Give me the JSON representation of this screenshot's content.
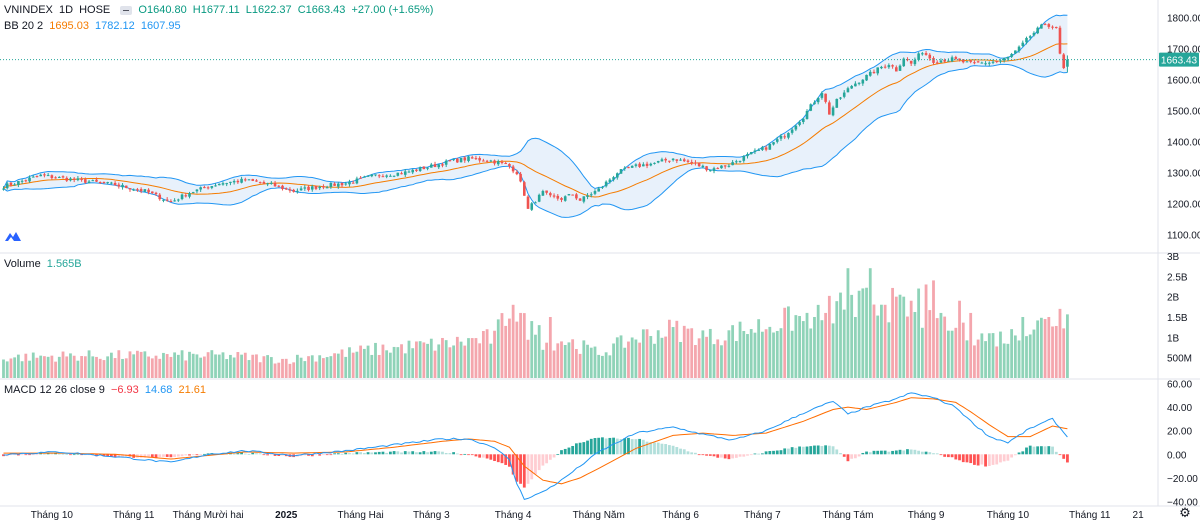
{
  "main_legend": {
    "symbol": "VNINDEX",
    "interval": "1D",
    "exchange": "HOSE",
    "open": "O1640.80",
    "high": "H1677.11",
    "low": "L1622.37",
    "close": "C1663.43",
    "change": "+27.00 (+1.65%)"
  },
  "bb_legend": {
    "name": "BB 20 2",
    "basis": "1695.03",
    "upper": "1782.12",
    "lower": "1607.95"
  },
  "volume_legend": {
    "name": "Volume",
    "value": "1.565B"
  },
  "macd_legend": {
    "name": "MACD 12 26 close 9",
    "hist": "−6.93",
    "macd": "14.68",
    "signal": "21.61"
  },
  "price_tag": "1663.43",
  "colors": {
    "up": "#26a69a",
    "down": "#ef5350",
    "bb_band": "#2196f3",
    "bb_basis": "#f57c00",
    "bb_fill": "#e8f1fb",
    "macd": "#2196f3",
    "signal": "#ff6d00"
  },
  "icons": {
    "logo": "tradingview-logo-icon",
    "settings": "gear-icon",
    "hide": "minus-icon"
  },
  "chart_data": [
    {
      "type": "candlestick",
      "title": "VNINDEX 1D HOSE",
      "ylim": [
        1050,
        1830
      ],
      "y_ticks": [
        "1800.00",
        "1700.00",
        "1600.00",
        "1500.00",
        "1400.00",
        "1300.00",
        "1200.00",
        "1100.00"
      ],
      "x_ticks": [
        "Tháng 10",
        "Tháng 11",
        "Tháng Mười hai",
        "2025",
        "Tháng Hai",
        "Tháng 3",
        "Tháng 4",
        "Tháng Năm",
        "Tháng 6",
        "Tháng 7",
        "Tháng Tám",
        "Tháng 9",
        "Tháng 10",
        "Tháng 11",
        "21"
      ],
      "x_tick_index": [
        13,
        35,
        55,
        76,
        96,
        115,
        137,
        160,
        182,
        204,
        227,
        248,
        270,
        292,
        305
      ],
      "last": {
        "open": 1640.8,
        "high": 1677.11,
        "low": 1622.37,
        "close": 1663.43
      },
      "close_anchors": [
        [
          0,
          1255
        ],
        [
          10,
          1290
        ],
        [
          20,
          1275
        ],
        [
          30,
          1260
        ],
        [
          38,
          1240
        ],
        [
          45,
          1205
        ],
        [
          50,
          1235
        ],
        [
          58,
          1265
        ],
        [
          65,
          1275
        ],
        [
          72,
          1260
        ],
        [
          78,
          1240
        ],
        [
          85,
          1255
        ],
        [
          92,
          1265
        ],
        [
          100,
          1290
        ],
        [
          108,
          1300
        ],
        [
          115,
          1320
        ],
        [
          120,
          1335
        ],
        [
          125,
          1345
        ],
        [
          130,
          1340
        ],
        [
          134,
          1330
        ],
        [
          136,
          1320
        ],
        [
          138,
          1300
        ],
        [
          140,
          1230
        ],
        [
          141,
          1180
        ],
        [
          143,
          1210
        ],
        [
          145,
          1235
        ],
        [
          147,
          1220
        ],
        [
          150,
          1215
        ],
        [
          153,
          1230
        ],
        [
          155,
          1210
        ],
        [
          157,
          1225
        ],
        [
          160,
          1245
        ],
        [
          165,
          1300
        ],
        [
          170,
          1320
        ],
        [
          175,
          1330
        ],
        [
          180,
          1345
        ],
        [
          185,
          1330
        ],
        [
          190,
          1310
        ],
        [
          195,
          1325
        ],
        [
          200,
          1355
        ],
        [
          205,
          1380
        ],
        [
          210,
          1420
        ],
        [
          215,
          1480
        ],
        [
          218,
          1530
        ],
        [
          220,
          1560
        ],
        [
          222,
          1490
        ],
        [
          224,
          1530
        ],
        [
          228,
          1580
        ],
        [
          232,
          1610
        ],
        [
          236,
          1640
        ],
        [
          238,
          1650
        ],
        [
          240,
          1630
        ],
        [
          242,
          1670
        ],
        [
          244,
          1650
        ],
        [
          247,
          1690
        ],
        [
          250,
          1660
        ],
        [
          255,
          1665
        ],
        [
          260,
          1650
        ],
        [
          265,
          1655
        ],
        [
          268,
          1660
        ],
        [
          270,
          1670
        ],
        [
          273,
          1700
        ],
        [
          276,
          1740
        ],
        [
          278,
          1760
        ],
        [
          280,
          1780
        ],
        [
          282,
          1770
        ],
        [
          283,
          1760
        ],
        [
          284,
          1680
        ],
        [
          285,
          1636.43
        ],
        [
          286,
          1663.43
        ]
      ],
      "series": [
        {
          "name": "BB 20 2 basis"
        },
        {
          "name": "BB 20 2 upper"
        },
        {
          "name": "BB 20 2 lower"
        }
      ]
    },
    {
      "type": "bar",
      "title": "Volume",
      "ylim": [
        0,
        3000000000
      ],
      "y_ticks": [
        "3B",
        "2.5B",
        "2B",
        "1.5B",
        "1B",
        "500M"
      ],
      "last_value": 1565000000,
      "volume_anchors": [
        [
          0,
          0.5
        ],
        [
          20,
          0.55
        ],
        [
          60,
          0.55
        ],
        [
          76,
          0.45
        ],
        [
          100,
          0.7
        ],
        [
          120,
          0.85
        ],
        [
          132,
          1.0
        ],
        [
          136,
          1.7
        ],
        [
          139,
          1.4
        ],
        [
          145,
          0.9
        ],
        [
          152,
          0.9
        ],
        [
          160,
          0.6
        ],
        [
          170,
          1.0
        ],
        [
          180,
          1.2
        ],
        [
          190,
          1.0
        ],
        [
          200,
          1.2
        ],
        [
          210,
          1.4
        ],
        [
          220,
          1.6
        ],
        [
          228,
          1.8
        ],
        [
          235,
          1.9
        ],
        [
          242,
          1.7
        ],
        [
          250,
          1.3
        ],
        [
          262,
          1.0
        ],
        [
          270,
          1.0
        ],
        [
          278,
          1.3
        ],
        [
          286,
          1.565
        ]
      ],
      "volume_spikes": [
        [
          137,
          1.8
        ],
        [
          139,
          1.6
        ],
        [
          142,
          1.4
        ],
        [
          144,
          1.3
        ],
        [
          147,
          1.5
        ],
        [
          150,
          0.9
        ],
        [
          215,
          1.4
        ],
        [
          218,
          1.5
        ],
        [
          221,
          1.6
        ],
        [
          225,
          2.1
        ],
        [
          227,
          2.7
        ],
        [
          229,
          1.5
        ],
        [
          233,
          2.7
        ],
        [
          237,
          1.8
        ],
        [
          240,
          2.0
        ],
        [
          242,
          2.0
        ],
        [
          244,
          1.9
        ],
        [
          246,
          2.2
        ],
        [
          248,
          2.3
        ],
        [
          250,
          2.4
        ],
        [
          252,
          1.6
        ],
        [
          257,
          1.9
        ],
        [
          260,
          1.6
        ],
        [
          274,
          1.5
        ],
        [
          281,
          1.5
        ],
        [
          284,
          1.7
        ]
      ]
    },
    {
      "type": "line",
      "title": "MACD 12 26 close 9",
      "ylim": [
        -43,
        63
      ],
      "y_ticks": [
        "60.00",
        "40.00",
        "20.00",
        "0.00",
        "−20.00",
        "−40.00"
      ],
      "series": [
        {
          "name": "MACD",
          "anchors": [
            [
              0,
              0
            ],
            [
              15,
              2
            ],
            [
              30,
              -2
            ],
            [
              45,
              -7
            ],
            [
              55,
              0
            ],
            [
              65,
              3
            ],
            [
              78,
              -1
            ],
            [
              92,
              3
            ],
            [
              105,
              8
            ],
            [
              118,
              13
            ],
            [
              125,
              13
            ],
            [
              132,
              6
            ],
            [
              136,
              -5
            ],
            [
              138,
              -25
            ],
            [
              140,
              -38
            ],
            [
              145,
              -32
            ],
            [
              150,
              -22
            ],
            [
              155,
              -10
            ],
            [
              160,
              2
            ],
            [
              170,
              18
            ],
            [
              180,
              23
            ],
            [
              188,
              17
            ],
            [
              196,
              12
            ],
            [
              205,
              20
            ],
            [
              215,
              35
            ],
            [
              223,
              45
            ],
            [
              227,
              34
            ],
            [
              232,
              40
            ],
            [
              240,
              47
            ],
            [
              244,
              52
            ],
            [
              250,
              48
            ],
            [
              256,
              40
            ],
            [
              260,
              28
            ],
            [
              265,
              15
            ],
            [
              270,
              10
            ],
            [
              276,
              22
            ],
            [
              282,
              30
            ],
            [
              286,
              14.68
            ]
          ]
        },
        {
          "name": "Signal",
          "anchors": [
            [
              0,
              1
            ],
            [
              15,
              1
            ],
            [
              30,
              0
            ],
            [
              45,
              -4
            ],
            [
              55,
              -1
            ],
            [
              65,
              2
            ],
            [
              78,
              1
            ],
            [
              92,
              2
            ],
            [
              105,
              6
            ],
            [
              118,
              11
            ],
            [
              125,
              13
            ],
            [
              132,
              11
            ],
            [
              136,
              6
            ],
            [
              140,
              -10
            ],
            [
              145,
              -22
            ],
            [
              150,
              -25
            ],
            [
              155,
              -20
            ],
            [
              160,
              -12
            ],
            [
              170,
              5
            ],
            [
              180,
              16
            ],
            [
              188,
              18
            ],
            [
              196,
              16
            ],
            [
              205,
              18
            ],
            [
              215,
              28
            ],
            [
              223,
              38
            ],
            [
              227,
              40
            ],
            [
              232,
              38
            ],
            [
              240,
              44
            ],
            [
              244,
              48
            ],
            [
              250,
              47
            ],
            [
              256,
              44
            ],
            [
              260,
              36
            ],
            [
              265,
              25
            ],
            [
              270,
              15
            ],
            [
              276,
              15
            ],
            [
              282,
              24
            ],
            [
              286,
              21.61
            ]
          ]
        },
        {
          "name": "Histogram",
          "note": "MACD minus Signal"
        }
      ],
      "last": {
        "histogram": -6.93,
        "macd": 14.68,
        "signal": 21.61
      }
    }
  ]
}
